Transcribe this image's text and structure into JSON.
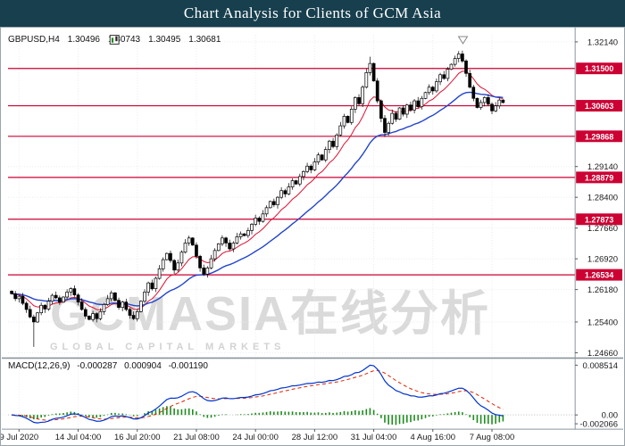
{
  "title_bar": {
    "title": "Chart Analysis for Clients of GCM Asia"
  },
  "colors": {
    "title_bar_bg": "#173f4e",
    "level_red": "#cc0033",
    "badge_red": "#cc0033",
    "ma_fast_red": "#e01030",
    "ma_slow_blue": "#2244cc",
    "macd_line_blue": "#0033cc",
    "macd_signal_red": "#dd2200",
    "macd_hist_green": "#1e8c1e",
    "candle_black": "#000000",
    "grid_gray": "#ebebeb"
  },
  "chart": {
    "symbol_label": "GBPUSD,H4",
    "ohlc": {
      "open": "1.30496",
      "high": "1.30743",
      "low": "1.30495",
      "close": "1.30681"
    },
    "watermark": {
      "line1": "GCMASIA在线分析",
      "line2": "GLOBAL CAPITAL MARKETS"
    },
    "price_axis_ticks": [
      "1.32140",
      "1.29140",
      "1.28400",
      "1.27660",
      "1.26920",
      "1.26180",
      "1.25400",
      "1.24660"
    ],
    "level_badges": [
      "1.31500",
      "1.30603",
      "1.29868",
      "1.28879",
      "1.27873",
      "1.26534"
    ],
    "macd": {
      "name": "MACD(12,26,9)",
      "hist_value": "-0.000287",
      "macd_value": "0.000904",
      "signal_value": "-0.001190",
      "axis_ticks": [
        "0.008514",
        "0.00",
        "-0.002066"
      ]
    }
  },
  "chart_data": {
    "type": "candlestick",
    "symbol": "GBPUSD",
    "timeframe": "H4",
    "title": "Chart Analysis for Clients of GCM Asia",
    "price_range": [
      1.2448,
      1.3231
    ],
    "last_ohlc": {
      "open": 1.30496,
      "high": 1.30743,
      "low": 1.30495,
      "close": 1.30681
    },
    "horizontal_levels": [
      1.315,
      1.30603,
      1.29868,
      1.28879,
      1.27873,
      1.26534
    ],
    "x_labels": [
      "9 Jul 2020",
      "14 Jul 04:00",
      "16 Jul 20:00",
      "21 Jul 08:00",
      "24 Jul 00:00",
      "28 Jul 12:00",
      "31 Jul 04:00",
      "4 Aug 16:00",
      "7 Aug 08:00"
    ],
    "label_bar_indices": [
      2,
      18,
      34,
      50,
      66,
      82,
      98,
      114,
      130
    ],
    "closes": [
      1.2608,
      1.2596,
      1.2602,
      1.2585,
      1.257,
      1.2552,
      1.254,
      1.2562,
      1.258,
      1.2571,
      1.259,
      1.2604,
      1.2598,
      1.2588,
      1.26,
      1.2612,
      1.262,
      1.2605,
      1.2588,
      1.257,
      1.2554,
      1.2546,
      1.256,
      1.2548,
      1.2565,
      1.2582,
      1.2596,
      1.261,
      1.2592,
      1.2575,
      1.2588,
      1.257,
      1.2556,
      1.2548,
      1.2565,
      1.259,
      1.2612,
      1.2634,
      1.262,
      1.2645,
      1.2668,
      1.269,
      1.2705,
      1.2688,
      1.2665,
      1.2682,
      1.2708,
      1.273,
      1.2742,
      1.2725,
      1.2698,
      1.267,
      1.2655,
      1.267,
      1.2692,
      1.2712,
      1.2728,
      1.2742,
      1.273,
      1.2716,
      1.273,
      1.2745,
      1.2752,
      1.2748,
      1.276,
      1.2775,
      1.279,
      1.2782,
      1.28,
      1.2815,
      1.283,
      1.2822,
      1.284,
      1.2856,
      1.2848,
      1.2865,
      1.288,
      1.2872,
      1.289,
      1.2902,
      1.2915,
      1.2906,
      1.2925,
      1.2942,
      1.293,
      1.2955,
      1.2975,
      1.2962,
      1.299,
      1.3012,
      1.3035,
      1.302,
      1.3052,
      1.308,
      1.3065,
      1.3105,
      1.314,
      1.3162,
      1.312,
      1.3072,
      1.303,
      1.2996,
      1.3018,
      1.3042,
      1.3028,
      1.3055,
      1.304,
      1.3062,
      1.305,
      1.3072,
      1.3058,
      1.3078,
      1.3092,
      1.3105,
      1.3096,
      1.3118,
      1.3135,
      1.3126,
      1.3148,
      1.316,
      1.3174,
      1.3185,
      1.3168,
      1.3138,
      1.3105,
      1.3078,
      1.3056,
      1.3068,
      1.308,
      1.3064,
      1.3048,
      1.306,
      1.3074,
      1.3068
    ],
    "special_highs": {
      "97": 1.3178,
      "121": 1.3192
    },
    "special_lows": {
      "6": 1.248,
      "101": 1.2985
    },
    "moving_averages": [
      {
        "type": "ema",
        "period": 10,
        "color": "#e01030"
      },
      {
        "type": "ema",
        "period": 28,
        "color": "#2244cc"
      }
    ],
    "macd_params": {
      "fast": 12,
      "slow": 26,
      "signal": 9
    },
    "macd_axis": {
      "max": 0.008514,
      "zero": 0.0,
      "min": -0.002066
    },
    "macd_current": {
      "histogram": -0.000287,
      "macd": 0.000904,
      "signal": -0.00119
    }
  }
}
